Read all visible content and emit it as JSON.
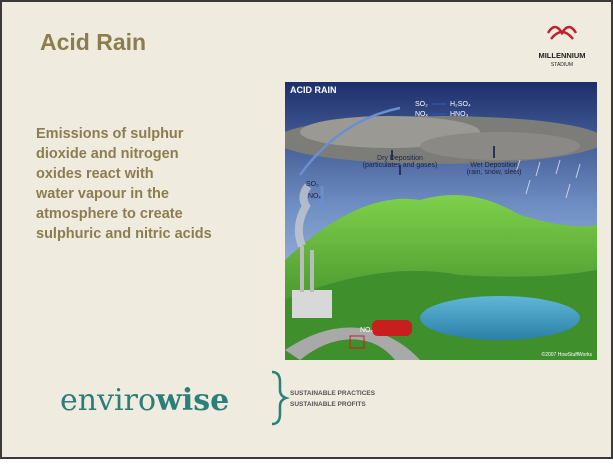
{
  "slide": {
    "title": "Acid Rain",
    "logo": {
      "line1": "MILLENNIUM",
      "line2": "STADIUM"
    },
    "body_lines": [
      "Emissions of sulphur",
      "dioxide and nitrogen",
      "oxides react with",
      "water vapour in the",
      "atmosphere to create",
      "sulphuric and nitric acids"
    ],
    "illustration": {
      "heading": "ACID RAIN",
      "so2_top": "SO₂",
      "h2so4": "H₂SO₄",
      "nox_top": "NOₓ",
      "hno3": "HNO₃",
      "dry_deposition": "Dry Deposition",
      "dry_detail": "(particulates and gases)",
      "wet_deposition": "Wet Deposition",
      "wet_detail": "(rain, snow, sleet)",
      "so2_left": "SO₂",
      "nox_left": "NOₓ",
      "nox_car": "NOₓ",
      "credit": "©2007 HowStuffWorks"
    },
    "footer": {
      "brand_light": "enviro",
      "brand_bold": "wise",
      "tagline1": "SUSTAINABLE PRACTICES",
      "tagline2": "SUSTAINABLE PROFITS"
    }
  }
}
